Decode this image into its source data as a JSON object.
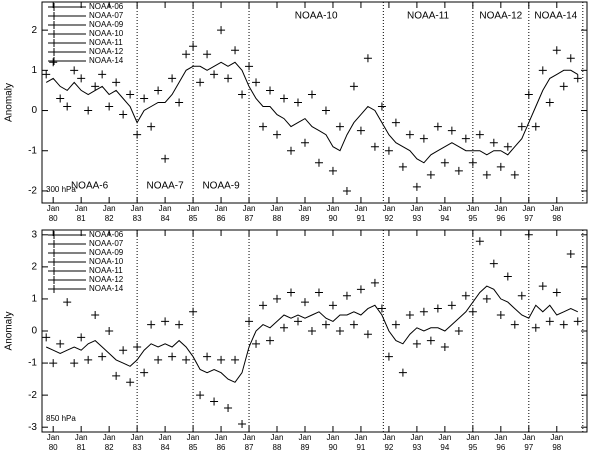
{
  "chart_data": [
    {
      "type": "scatter",
      "ylabel": "Anomaly",
      "annotation": "300 hPa",
      "legend": "top-left",
      "grid": false,
      "xlim": [
        1979.6,
        1999.08
      ],
      "ylim": [
        -2.3,
        2.7
      ],
      "yticks": [
        -2,
        -1,
        0,
        1,
        2
      ],
      "xtick_month": "Jan",
      "xticks": [
        {
          "value": 1980,
          "label": "80"
        },
        {
          "value": 1981,
          "label": "81"
        },
        {
          "value": 1982,
          "label": "82"
        },
        {
          "value": 1983,
          "label": "83"
        },
        {
          "value": 1984,
          "label": "84"
        },
        {
          "value": 1985,
          "label": "85"
        },
        {
          "value": 1986,
          "label": "86"
        },
        {
          "value": 1987,
          "label": "87"
        },
        {
          "value": 1988,
          "label": "88"
        },
        {
          "value": 1989,
          "label": "89"
        },
        {
          "value": 1990,
          "label": "90"
        },
        {
          "value": 1991,
          "label": "91"
        },
        {
          "value": 1992,
          "label": "92"
        },
        {
          "value": 1993,
          "label": "93"
        },
        {
          "value": 1994,
          "label": "94"
        },
        {
          "value": 1995,
          "label": "95"
        },
        {
          "value": 1996,
          "label": "96"
        },
        {
          "value": 1997,
          "label": "97"
        },
        {
          "value": 1998,
          "label": "98"
        }
      ],
      "boundaries": [
        1983,
        1985,
        1987,
        1991.8,
        1995,
        1997,
        1998.93
      ],
      "periods": [
        {
          "label": "NOAA-6",
          "row": "bottom"
        },
        {
          "label": "NOAA-7",
          "row": "bottom"
        },
        {
          "label": "NOAA-9",
          "row": "bottom"
        },
        {
          "label": "NOAA-10",
          "row": "top"
        },
        {
          "label": "NOAA-11",
          "row": "top"
        },
        {
          "label": "NOAA-12",
          "row": "top"
        },
        {
          "label": "NOAA-14",
          "row": "top"
        }
      ],
      "series": [
        {
          "name": "NOAA-06",
          "color": "#000000",
          "x": [
            1979.75,
            1980,
            1980.25,
            1980.5,
            1980.75,
            1981,
            1981.25,
            1981.5,
            1981.75,
            1982,
            1982.25,
            1982.5,
            1982.75
          ],
          "values": [
            0.9,
            1.2,
            0.3,
            0.1,
            1.0,
            0.8,
            0.0,
            0.6,
            0.9,
            0.1,
            0.7,
            -0.1,
            0.4
          ]
        },
        {
          "name": "NOAA-07",
          "color": "#000000",
          "x": [
            1983,
            1983.25,
            1983.5,
            1983.75,
            1984,
            1984.25,
            1984.5,
            1984.75
          ],
          "values": [
            -0.6,
            0.3,
            -0.4,
            0.5,
            -1.2,
            0.8,
            0.2,
            1.4
          ]
        },
        {
          "name": "NOAA-09",
          "color": "#000000",
          "x": [
            1985,
            1985.25,
            1985.5,
            1985.75,
            1986,
            1986.25,
            1986.5,
            1986.75
          ],
          "values": [
            1.6,
            0.7,
            1.4,
            0.9,
            2.0,
            0.8,
            1.5,
            0.4
          ]
        },
        {
          "name": "NOAA-10",
          "color": "#000000",
          "x": [
            1987,
            1987.25,
            1987.5,
            1987.75,
            1988,
            1988.25,
            1988.5,
            1988.75,
            1989,
            1989.25,
            1989.5,
            1989.75,
            1990,
            1990.25,
            1990.5,
            1990.75,
            1991,
            1991.25,
            1991.5
          ],
          "values": [
            1.1,
            0.7,
            -0.4,
            0.5,
            -0.6,
            0.3,
            -1.0,
            0.2,
            -0.8,
            0.4,
            -1.3,
            0.0,
            -1.5,
            -0.4,
            -2.0,
            0.6,
            -0.5,
            1.3,
            -0.9
          ]
        },
        {
          "name": "NOAA-11",
          "color": "#000000",
          "x": [
            1991.75,
            1992,
            1992.25,
            1992.5,
            1992.75,
            1993,
            1993.25,
            1993.5,
            1993.75,
            1994,
            1994.25,
            1994.5,
            1994.75
          ],
          "values": [
            0.1,
            -1.0,
            -0.3,
            -1.4,
            -0.6,
            -1.9,
            -0.7,
            -1.6,
            -0.4,
            -1.3,
            -0.5,
            -1.5,
            -0.7
          ]
        },
        {
          "name": "NOAA-12",
          "color": "#000000",
          "x": [
            1995,
            1995.25,
            1995.5,
            1995.75,
            1996,
            1996.25,
            1996.5,
            1996.75
          ],
          "values": [
            -1.3,
            -0.6,
            -1.6,
            -0.8,
            -1.4,
            -0.9,
            -1.6,
            -0.4
          ]
        },
        {
          "name": "NOAA-14",
          "color": "#000000",
          "x": [
            1997,
            1997.25,
            1997.5,
            1997.75,
            1998,
            1998.25,
            1998.5,
            1998.75
          ],
          "values": [
            0.4,
            -0.4,
            1.0,
            0.2,
            1.5,
            0.6,
            1.3,
            0.8
          ]
        }
      ],
      "line": {
        "color": "#000000",
        "x": [
          1979.75,
          1980,
          1980.25,
          1980.5,
          1980.75,
          1981,
          1981.25,
          1981.5,
          1981.75,
          1982,
          1982.25,
          1982.5,
          1982.75,
          1983,
          1983.25,
          1983.5,
          1983.75,
          1984,
          1984.25,
          1984.5,
          1984.75,
          1985,
          1985.25,
          1985.5,
          1985.75,
          1986,
          1986.25,
          1986.5,
          1986.75,
          1987,
          1987.25,
          1987.5,
          1987.75,
          1988,
          1988.25,
          1988.5,
          1988.75,
          1989,
          1989.25,
          1989.5,
          1989.75,
          1990,
          1990.25,
          1990.5,
          1990.75,
          1991,
          1991.25,
          1991.5,
          1991.75,
          1992,
          1992.25,
          1992.5,
          1992.75,
          1993,
          1993.25,
          1993.5,
          1993.75,
          1994,
          1994.25,
          1994.5,
          1994.75,
          1995,
          1995.25,
          1995.5,
          1995.75,
          1996,
          1996.25,
          1996.5,
          1996.75,
          1997,
          1997.25,
          1997.5,
          1997.75,
          1998,
          1998.25,
          1998.5,
          1998.75
        ],
        "values": [
          0.7,
          0.8,
          0.6,
          0.5,
          0.7,
          0.5,
          0.4,
          0.5,
          0.6,
          0.4,
          0.5,
          0.3,
          0.1,
          -0.3,
          0.0,
          0.1,
          0.2,
          0.2,
          0.4,
          0.7,
          1.0,
          1.1,
          1.1,
          1.0,
          1.1,
          1.2,
          1.1,
          1.2,
          1.0,
          0.6,
          0.3,
          0.1,
          0.1,
          -0.1,
          -0.2,
          -0.4,
          -0.3,
          -0.2,
          -0.4,
          -0.5,
          -0.6,
          -0.9,
          -1.0,
          -0.6,
          -0.3,
          -0.1,
          0.1,
          0.0,
          -0.3,
          -0.6,
          -0.8,
          -0.9,
          -1.0,
          -1.2,
          -1.3,
          -1.1,
          -1.0,
          -0.9,
          -0.8,
          -0.9,
          -1.0,
          -1.0,
          -1.0,
          -1.1,
          -1.0,
          -1.0,
          -1.1,
          -0.9,
          -0.7,
          -0.3,
          0.1,
          0.5,
          0.8,
          0.9,
          1.0,
          1.0,
          0.9
        ]
      }
    },
    {
      "type": "scatter",
      "ylabel": "Anomaly",
      "annotation": "850 hPa",
      "legend": "top-left",
      "grid": false,
      "xlim": [
        1979.6,
        1999.08
      ],
      "ylim": [
        -3.15,
        3.15
      ],
      "yticks": [
        -3,
        -2,
        -1,
        0,
        1,
        2,
        3
      ],
      "xtick_month": "Jan",
      "xticks": [
        {
          "value": 1980,
          "label": "80"
        },
        {
          "value": 1981,
          "label": "81"
        },
        {
          "value": 1982,
          "label": "82"
        },
        {
          "value": 1983,
          "label": "83"
        },
        {
          "value": 1984,
          "label": "84"
        },
        {
          "value": 1985,
          "label": "85"
        },
        {
          "value": 1986,
          "label": "86"
        },
        {
          "value": 1987,
          "label": "87"
        },
        {
          "value": 1988,
          "label": "88"
        },
        {
          "value": 1989,
          "label": "89"
        },
        {
          "value": 1990,
          "label": "90"
        },
        {
          "value": 1991,
          "label": "91"
        },
        {
          "value": 1992,
          "label": "92"
        },
        {
          "value": 1993,
          "label": "93"
        },
        {
          "value": 1994,
          "label": "94"
        },
        {
          "value": 1995,
          "label": "95"
        },
        {
          "value": 1996,
          "label": "96"
        },
        {
          "value": 1997,
          "label": "97"
        },
        {
          "value": 1998,
          "label": "98"
        }
      ],
      "boundaries": [
        1983,
        1985,
        1987,
        1991.8,
        1995,
        1997,
        1998.93
      ],
      "series": [
        {
          "name": "NOAA-06",
          "color": "#000000",
          "x": [
            1979.75,
            1980,
            1980.25,
            1980.5,
            1980.75,
            1981,
            1981.25,
            1981.5,
            1981.75,
            1982,
            1982.25,
            1982.5,
            1982.75
          ],
          "values": [
            -0.2,
            -1.0,
            -0.4,
            0.9,
            -1.0,
            -0.2,
            -0.9,
            0.5,
            -0.8,
            0.0,
            -1.4,
            -0.6,
            -1.6
          ]
        },
        {
          "name": "NOAA-07",
          "color": "#000000",
          "x": [
            1983,
            1983.25,
            1983.5,
            1983.75,
            1984,
            1984.25,
            1984.5,
            1984.75
          ],
          "values": [
            -0.5,
            -1.3,
            0.2,
            -0.9,
            0.3,
            -0.8,
            0.2,
            -0.9
          ]
        },
        {
          "name": "NOAA-09",
          "color": "#000000",
          "x": [
            1985,
            1985.25,
            1985.5,
            1985.75,
            1986,
            1986.25,
            1986.5,
            1986.75
          ],
          "values": [
            0.6,
            -2.0,
            -0.8,
            -2.2,
            -0.9,
            -2.4,
            -0.9,
            -2.9
          ]
        },
        {
          "name": "NOAA-10",
          "color": "#000000",
          "x": [
            1987,
            1987.25,
            1987.5,
            1987.75,
            1988,
            1988.25,
            1988.5,
            1988.75,
            1989,
            1989.25,
            1989.5,
            1989.75,
            1990,
            1990.25,
            1990.5,
            1990.75,
            1991,
            1991.25,
            1991.5
          ],
          "values": [
            0.3,
            -0.4,
            0.8,
            -0.3,
            1.0,
            0.1,
            1.2,
            0.3,
            0.9,
            0.0,
            1.2,
            0.2,
            0.8,
            0.0,
            1.1,
            0.2,
            1.3,
            -0.1,
            1.5
          ]
        },
        {
          "name": "NOAA-11",
          "color": "#000000",
          "x": [
            1991.75,
            1992,
            1992.25,
            1992.5,
            1992.75,
            1993,
            1993.25,
            1993.5,
            1993.75,
            1994,
            1994.25,
            1994.5,
            1994.75
          ],
          "values": [
            0.7,
            -0.8,
            0.2,
            -1.3,
            0.5,
            -0.4,
            0.6,
            -0.3,
            0.7,
            -0.5,
            0.8,
            0.0,
            1.1
          ]
        },
        {
          "name": "NOAA-12",
          "color": "#000000",
          "x": [
            1995,
            1995.25,
            1995.5,
            1995.75,
            1996,
            1996.25,
            1996.5,
            1996.75
          ],
          "values": [
            0.6,
            2.8,
            1.0,
            2.1,
            0.5,
            1.7,
            0.2,
            1.1
          ]
        },
        {
          "name": "NOAA-14",
          "color": "#000000",
          "x": [
            1997,
            1997.25,
            1997.5,
            1997.75,
            1998,
            1998.25,
            1998.5,
            1998.75
          ],
          "values": [
            3.0,
            0.1,
            1.4,
            0.3,
            1.2,
            0.2,
            2.4,
            0.3
          ]
        }
      ],
      "line": {
        "color": "#000000",
        "x": [
          1979.75,
          1980,
          1980.25,
          1980.5,
          1980.75,
          1981,
          1981.25,
          1981.5,
          1981.75,
          1982,
          1982.25,
          1982.5,
          1982.75,
          1983,
          1983.25,
          1983.5,
          1983.75,
          1984,
          1984.25,
          1984.5,
          1984.75,
          1985,
          1985.25,
          1985.5,
          1985.75,
          1986,
          1986.25,
          1986.5,
          1986.75,
          1987,
          1987.25,
          1987.5,
          1987.75,
          1988,
          1988.25,
          1988.5,
          1988.75,
          1989,
          1989.25,
          1989.5,
          1989.75,
          1990,
          1990.25,
          1990.5,
          1990.75,
          1991,
          1991.25,
          1991.5,
          1991.75,
          1992,
          1992.25,
          1992.5,
          1992.75,
          1993,
          1993.25,
          1993.5,
          1993.75,
          1994,
          1994.25,
          1994.5,
          1994.75,
          1995,
          1995.25,
          1995.5,
          1995.75,
          1996,
          1996.25,
          1996.5,
          1996.75,
          1997,
          1997.25,
          1997.5,
          1997.75,
          1998,
          1998.25,
          1998.5,
          1998.75
        ],
        "values": [
          -0.5,
          -0.6,
          -0.7,
          -0.6,
          -0.5,
          -0.6,
          -0.4,
          -0.3,
          -0.5,
          -0.7,
          -0.9,
          -1.0,
          -1.1,
          -0.9,
          -0.6,
          -0.4,
          -0.5,
          -0.4,
          -0.5,
          -0.3,
          -0.5,
          -0.8,
          -1.2,
          -1.3,
          -1.2,
          -1.3,
          -1.5,
          -1.6,
          -1.3,
          -0.5,
          0.0,
          0.2,
          0.1,
          0.3,
          0.5,
          0.4,
          0.5,
          0.4,
          0.5,
          0.6,
          0.4,
          0.3,
          0.5,
          0.5,
          0.6,
          0.5,
          0.7,
          0.8,
          0.5,
          0.0,
          -0.3,
          -0.4,
          -0.1,
          0.1,
          0.0,
          0.1,
          0.1,
          0.0,
          0.2,
          0.4,
          0.6,
          0.9,
          1.2,
          1.4,
          1.3,
          1.0,
          0.9,
          0.7,
          0.5,
          0.4,
          0.8,
          0.6,
          0.8,
          0.5,
          0.6,
          0.7,
          0.6
        ]
      }
    }
  ]
}
